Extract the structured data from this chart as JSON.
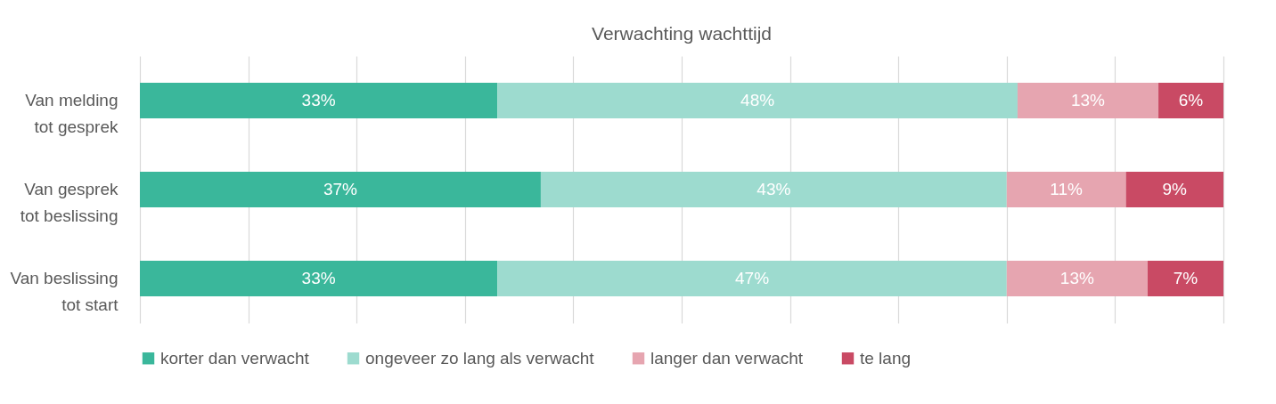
{
  "chart_data": {
    "type": "bar",
    "orientation": "horizontal",
    "stacked": true,
    "title": "Verwachting wachttijd",
    "categories": [
      "Van melding tot gesprek",
      "Van gesprek tot beslissing",
      "Van beslissing tot start"
    ],
    "series": [
      {
        "name": "korter dan verwacht",
        "color": "#3ab79b",
        "values": [
          33,
          37,
          33
        ],
        "value_labels": [
          "33%",
          "37%",
          "33%"
        ]
      },
      {
        "name": "ongeveer zo lang als verwacht",
        "color": "#9ddbcf",
        "values": [
          48,
          43,
          47
        ],
        "value_labels": [
          "48%",
          "43%",
          "47%"
        ]
      },
      {
        "name": "langer dan verwacht",
        "color": "#e6a5b0",
        "values": [
          13,
          11,
          13
        ],
        "value_labels": [
          "13%",
          "11%",
          "13%"
        ]
      },
      {
        "name": "te lang",
        "color": "#c94a64",
        "values": [
          6,
          9,
          7
        ],
        "value_labels": [
          "6%",
          "9%",
          "7%"
        ]
      }
    ],
    "grid": "x",
    "tick_labels": "y",
    "legend": "bottom"
  }
}
